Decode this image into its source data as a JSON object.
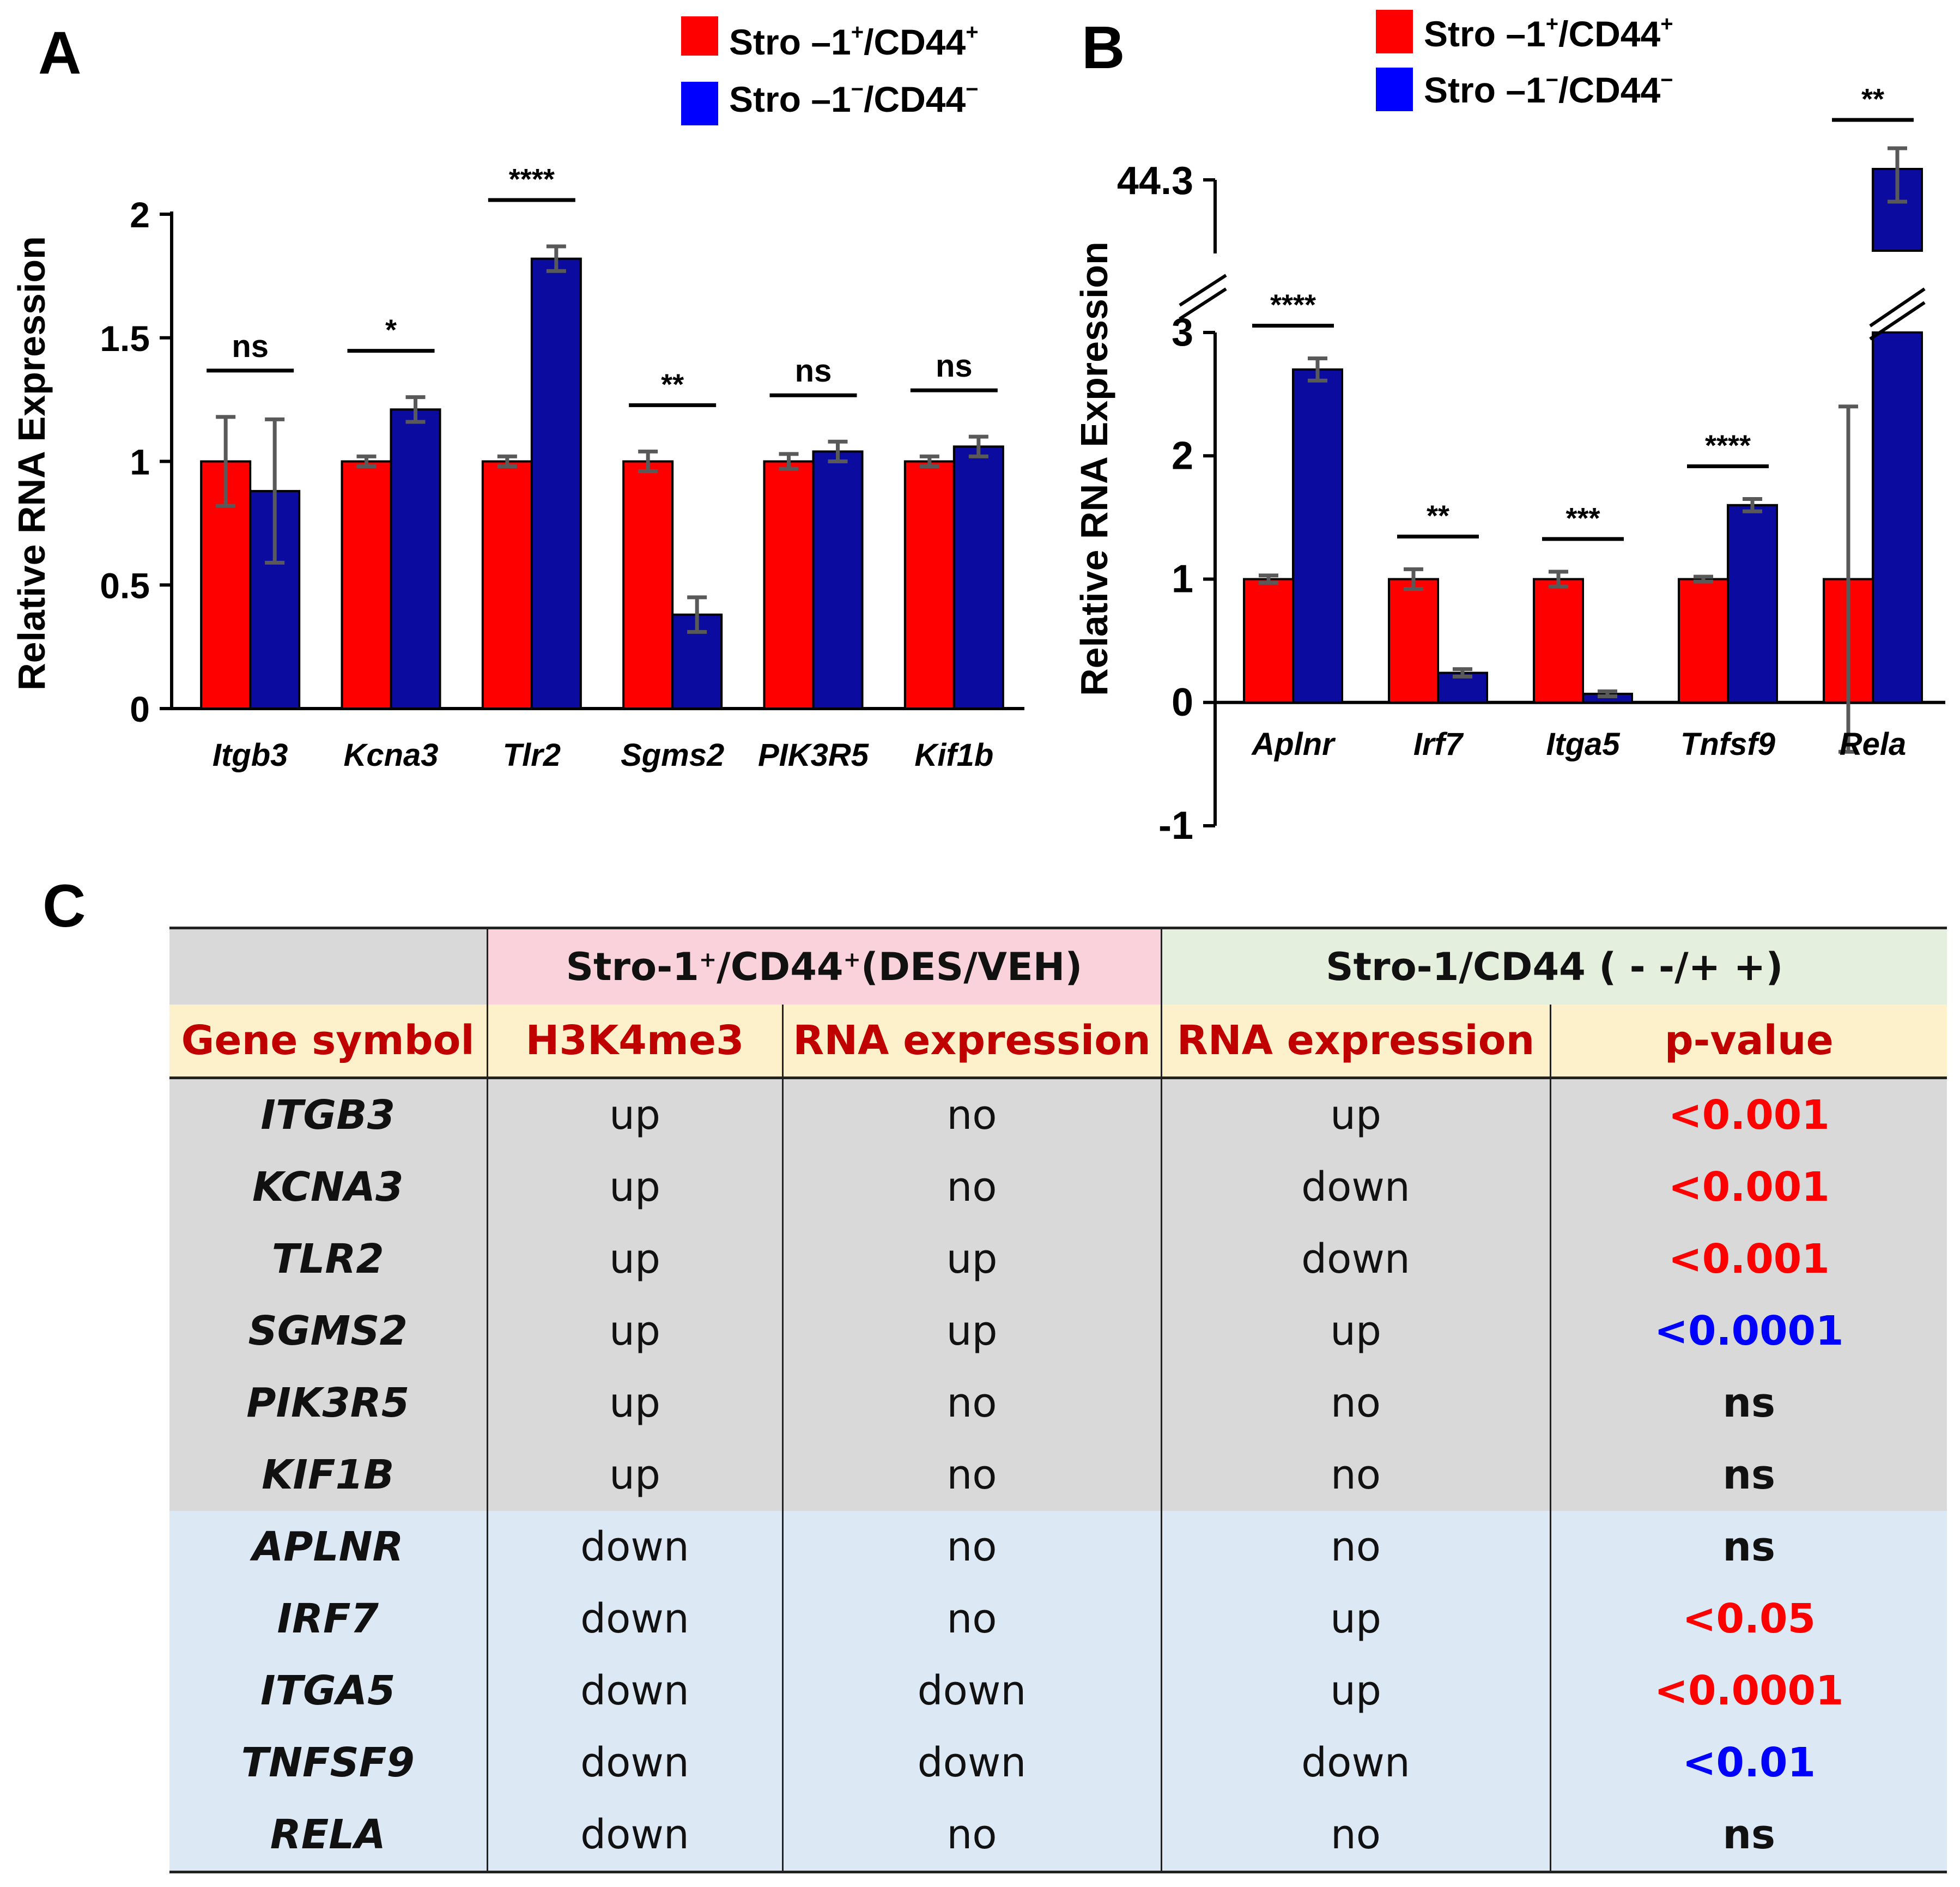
{
  "panels": {
    "a_letter": "A",
    "b_letter": "B",
    "c_letter": "C"
  },
  "legend": {
    "series1": {
      "prefix": "Stro –1",
      "sup1": "+",
      "mid": "/CD44",
      "sup2": "+",
      "color": "#ff0000"
    },
    "series2": {
      "prefix": "Stro –1",
      "sup1": "−",
      "mid": "/CD44",
      "sup2": "−",
      "color": "#0000ff"
    }
  },
  "chart_data": [
    {
      "type": "bar",
      "panel": "A",
      "title": "",
      "xlabel": "",
      "ylabel": "Relative RNA Expression",
      "ylim": [
        0,
        2
      ],
      "yticks": [
        "0",
        "0.5",
        "1",
        "1.5",
        "2"
      ],
      "yticks_values": [
        0,
        0.5,
        1,
        1.5,
        2
      ],
      "categories": [
        "Itgb3",
        "Kcna3",
        "Tlr2",
        "Sgms2",
        "PIK3R5",
        "Kif1b"
      ],
      "series": [
        {
          "name": "Stro –1+/CD44+",
          "color": "#ff0000",
          "values": [
            1.0,
            1.0,
            1.0,
            1.0,
            1.0,
            1.0
          ],
          "errors": [
            0.18,
            0.02,
            0.02,
            0.04,
            0.03,
            0.02
          ]
        },
        {
          "name": "Stro –1−/CD44−",
          "color": "#0b0ba0",
          "values": [
            0.88,
            1.21,
            1.82,
            0.38,
            1.04,
            1.06
          ],
          "errors": [
            0.29,
            0.05,
            0.05,
            0.07,
            0.04,
            0.04
          ]
        }
      ],
      "significance": [
        "ns",
        "*",
        "****",
        "**",
        "ns",
        "ns"
      ]
    },
    {
      "type": "bar",
      "panel": "B",
      "title": "",
      "xlabel": "",
      "ylabel": "Relative RNA Expression",
      "ylim": [
        -1,
        3
      ],
      "yticks": [
        "-1",
        "0",
        "1",
        "2",
        "3"
      ],
      "yticks_values": [
        -1,
        0,
        1,
        2,
        3
      ],
      "axis_break": {
        "upper_tick": "44.3",
        "upper_value": 44.3
      },
      "categories": [
        "Aplnr",
        "Irf7",
        "Itga5",
        "Tnfsf9",
        "Rela"
      ],
      "series": [
        {
          "name": "Stro –1+/CD44+",
          "color": "#ff0000",
          "values": [
            1.0,
            1.0,
            1.0,
            1.0,
            1.0
          ],
          "errors": [
            0.03,
            0.08,
            0.06,
            0.02,
            1.4
          ]
        },
        {
          "name": "Stro –1−/CD44−",
          "color": "#0b0ba0",
          "values": [
            2.7,
            0.24,
            0.07,
            1.6,
            44.3
          ],
          "errors": [
            0.09,
            0.03,
            0.02,
            0.05,
            3.0
          ]
        }
      ],
      "significance": [
        "****",
        "**",
        "***",
        "****",
        "**"
      ]
    }
  ],
  "table": {
    "group_header_1": {
      "prefix": "Stro-1",
      "sup1": "+",
      "mid": "/CD44",
      "sup2": "+",
      "suffix": "(DES/VEH)"
    },
    "group_header_2": "Stro-1/CD44 ( - -/+ +)",
    "columns": [
      "Gene symbol",
      "H3K4me3",
      "RNA expression",
      "RNA expression",
      "p-value"
    ],
    "rows": [
      {
        "gene": "ITGB3",
        "h3k4me3": "up",
        "rna1": "no",
        "rna2": "up",
        "p": "<0.001",
        "p_color": "#ff0000",
        "group": "grey"
      },
      {
        "gene": "KCNA3",
        "h3k4me3": "up",
        "rna1": "no",
        "rna2": "down",
        "p": "<0.001",
        "p_color": "#ff0000",
        "group": "grey"
      },
      {
        "gene": "TLR2",
        "h3k4me3": "up",
        "rna1": "up",
        "rna2": "down",
        "p": "<0.001",
        "p_color": "#ff0000",
        "group": "grey"
      },
      {
        "gene": "SGMS2",
        "h3k4me3": "up",
        "rna1": "up",
        "rna2": "up",
        "p": "<0.0001",
        "p_color": "#0000ff",
        "group": "grey"
      },
      {
        "gene": "PIK3R5",
        "h3k4me3": "up",
        "rna1": "no",
        "rna2": "no",
        "p": "ns",
        "p_color": "#111111",
        "group": "grey"
      },
      {
        "gene": "KIF1B",
        "h3k4me3": "up",
        "rna1": "no",
        "rna2": "no",
        "p": "ns",
        "p_color": "#111111",
        "group": "grey"
      },
      {
        "gene": "APLNR",
        "h3k4me3": "down",
        "rna1": "no",
        "rna2": "no",
        "p": "ns",
        "p_color": "#111111",
        "group": "blue"
      },
      {
        "gene": "IRF7",
        "h3k4me3": "down",
        "rna1": "no",
        "rna2": "up",
        "p": "<0.05",
        "p_color": "#ff0000",
        "group": "blue"
      },
      {
        "gene": "ITGA5",
        "h3k4me3": "down",
        "rna1": "down",
        "rna2": "up",
        "p": "<0.0001",
        "p_color": "#ff0000",
        "group": "blue"
      },
      {
        "gene": "TNFSF9",
        "h3k4me3": "down",
        "rna1": "down",
        "rna2": "down",
        "p": "<0.01",
        "p_color": "#0000ff",
        "group": "blue"
      },
      {
        "gene": "RELA",
        "h3k4me3": "down",
        "rna1": "no",
        "rna2": "no",
        "p": "ns",
        "p_color": "#111111",
        "group": "blue"
      }
    ]
  }
}
